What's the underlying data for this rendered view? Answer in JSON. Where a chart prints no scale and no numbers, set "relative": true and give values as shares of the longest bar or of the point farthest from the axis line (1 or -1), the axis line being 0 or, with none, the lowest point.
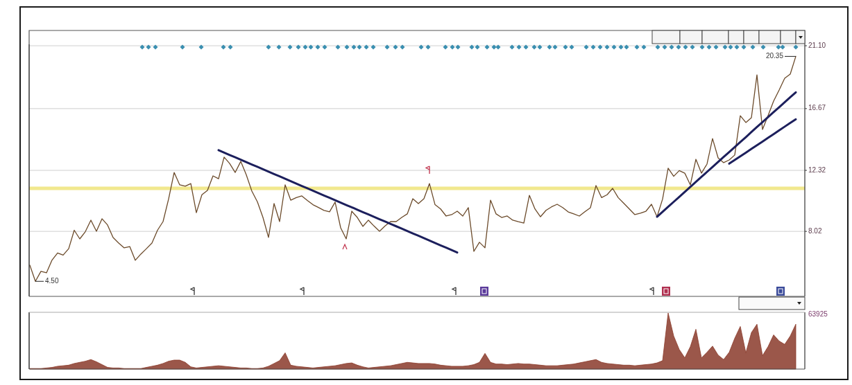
{
  "chart_data": [
    {
      "type": "line",
      "categories": [
        null,
        null,
        null,
        null,
        null,
        null,
        null,
        null,
        null,
        null,
        null,
        null,
        null,
        null,
        null,
        null,
        null,
        null,
        null,
        null,
        null,
        null,
        null,
        null,
        null,
        null,
        null,
        null,
        null,
        null,
        null,
        null,
        null,
        null,
        null,
        null,
        null,
        null,
        null,
        null,
        null,
        null,
        null,
        null,
        null,
        null,
        null,
        null,
        null,
        null,
        null,
        null,
        null,
        null,
        null,
        null,
        null,
        null,
        null,
        null,
        null,
        null,
        null,
        null,
        null,
        null,
        null,
        null,
        null,
        null,
        null,
        null,
        null,
        null,
        null,
        null,
        null,
        null,
        null,
        null,
        null,
        null,
        null,
        null,
        null,
        null,
        null,
        null,
        null,
        null,
        null,
        null,
        null,
        null,
        null,
        null,
        null,
        null,
        null,
        null,
        null,
        null,
        null,
        null,
        null,
        null,
        null,
        null,
        null,
        null,
        null,
        null,
        null,
        null,
        null,
        null,
        null,
        null,
        null,
        null,
        null,
        null,
        null,
        null,
        null,
        null,
        null,
        null,
        null,
        null,
        null,
        null,
        null,
        null,
        null,
        null,
        null,
        null,
        null
      ],
      "ylim": [
        3.44,
        21.2
      ],
      "yticks": [
        {
          "value": 21.1,
          "label": "21.10"
        },
        {
          "value": 16.67,
          "label": "16.67"
        },
        {
          "value": 12.32,
          "label": "12.32"
        },
        {
          "value": 8.02,
          "label": "8.02"
        }
      ],
      "tick_labels": "y",
      "grid": "y",
      "series": [
        {
          "color": "#6b4a2a",
          "values": [
            5.64,
            4.5,
            5.2,
            5.1,
            6.0,
            6.5,
            6.35,
            6.8,
            8.1,
            7.49,
            8.0,
            8.81,
            8.03,
            8.91,
            8.47,
            7.59,
            7.2,
            6.86,
            6.95,
            5.98,
            6.42,
            6.8,
            7.2,
            8.1,
            8.71,
            10.3,
            12.17,
            11.3,
            11.2,
            11.39,
            9.34,
            10.6,
            10.9,
            11.93,
            11.73,
            13.25,
            12.8,
            12.17,
            12.95,
            12.0,
            10.86,
            10.1,
            9.0,
            7.59,
            9.98,
            8.71,
            11.3,
            10.22,
            10.4,
            10.52,
            10.2,
            9.9,
            9.7,
            9.5,
            9.4,
            10.08,
            8.27,
            7.49,
            9.44,
            9.0,
            8.37,
            8.81,
            8.4,
            8.03,
            8.4,
            8.71,
            8.71,
            9.0,
            9.25,
            10.32,
            9.98,
            10.32,
            11.39,
            9.9,
            9.6,
            9.1,
            9.2,
            9.44,
            9.1,
            9.69,
            6.61,
            7.25,
            6.86,
            10.22,
            9.25,
            9.0,
            9.1,
            8.81,
            8.7,
            8.61,
            10.56,
            9.6,
            9.05,
            9.5,
            9.75,
            9.93,
            9.7,
            9.39,
            9.25,
            9.1,
            9.4,
            9.69,
            11.25,
            10.4,
            10.6,
            11.05,
            10.4,
            10.0,
            9.6,
            9.2,
            9.3,
            9.44,
            9.93,
            9.05,
            10.3,
            12.47,
            11.9,
            12.3,
            12.12,
            11.3,
            13.1,
            12.12,
            12.76,
            14.56,
            13.2,
            12.86,
            13.05,
            13.4,
            16.17,
            15.69,
            16.03,
            19.05,
            15.2,
            16.17,
            17.2,
            17.98,
            18.81,
            19.1,
            20.35
          ]
        },
        {
          "color": "#1c1f5c",
          "values": [
            null,
            null,
            null,
            null,
            null,
            null,
            null,
            null,
            null,
            null,
            null,
            null,
            null,
            null,
            null,
            null,
            null,
            null,
            null,
            null,
            null,
            null,
            null,
            null,
            null,
            null,
            null,
            null,
            null,
            null,
            null,
            null,
            null,
            null,
            13.74,
            13.57,
            13.4,
            13.24,
            13.07,
            12.9,
            12.73,
            12.57,
            12.4,
            12.23,
            12.06,
            11.9,
            11.73,
            11.56,
            11.39,
            11.22,
            11.06,
            10.89,
            10.72,
            10.55,
            10.39,
            10.22,
            10.05,
            9.88,
            9.72,
            9.55,
            9.38,
            9.21,
            9.05,
            8.88,
            8.71,
            8.54,
            8.38,
            8.21,
            8.04,
            7.87,
            7.71,
            7.54,
            7.37,
            7.2,
            7.03,
            6.87,
            6.7,
            6.53,
            null,
            null,
            null,
            null,
            null,
            null,
            null,
            null,
            null,
            null,
            null,
            null,
            null,
            null,
            null,
            null,
            null,
            null,
            null,
            null,
            null,
            null,
            null,
            null,
            null,
            null,
            null,
            null,
            null,
            null,
            null,
            null,
            null,
            null,
            null,
            null,
            null,
            null,
            null,
            null,
            null,
            null,
            null,
            null,
            null,
            null,
            null,
            null,
            null,
            null,
            null,
            null,
            null,
            null,
            null,
            null,
            null,
            null,
            null,
            null,
            null
          ]
        },
        {
          "color": "#1c1f5c",
          "values": [
            null,
            null,
            null,
            null,
            null,
            null,
            null,
            null,
            null,
            null,
            null,
            null,
            null,
            null,
            null,
            null,
            null,
            null,
            null,
            null,
            null,
            null,
            null,
            null,
            null,
            null,
            null,
            null,
            null,
            null,
            null,
            null,
            null,
            null,
            null,
            null,
            null,
            null,
            null,
            null,
            null,
            null,
            null,
            null,
            null,
            null,
            null,
            null,
            null,
            null,
            null,
            null,
            null,
            null,
            null,
            null,
            null,
            null,
            null,
            null,
            null,
            null,
            null,
            null,
            null,
            null,
            null,
            null,
            null,
            null,
            null,
            null,
            null,
            null,
            null,
            null,
            null,
            null,
            null,
            null,
            null,
            null,
            null,
            null,
            null,
            null,
            null,
            null,
            null,
            null,
            null,
            null,
            null,
            null,
            null,
            null,
            null,
            null,
            null,
            null,
            null,
            null,
            null,
            null,
            null,
            null,
            null,
            null,
            null,
            null,
            null,
            null,
            null,
            9.05,
            9.4,
            9.75,
            10.1,
            10.45,
            10.8,
            11.16,
            11.51,
            11.86,
            12.21,
            12.56,
            12.91,
            13.26,
            13.61,
            13.96,
            14.31,
            14.66,
            15.02,
            15.37,
            15.72,
            16.07,
            16.42,
            16.77,
            17.12,
            17.47,
            17.82
          ]
        },
        {
          "color": "#1c1f5c",
          "values": [
            null,
            null,
            null,
            null,
            null,
            null,
            null,
            null,
            null,
            null,
            null,
            null,
            null,
            null,
            null,
            null,
            null,
            null,
            null,
            null,
            null,
            null,
            null,
            null,
            null,
            null,
            null,
            null,
            null,
            null,
            null,
            null,
            null,
            null,
            null,
            null,
            null,
            null,
            null,
            null,
            null,
            null,
            null,
            null,
            null,
            null,
            null,
            null,
            null,
            null,
            null,
            null,
            null,
            null,
            null,
            null,
            null,
            null,
            null,
            null,
            null,
            null,
            null,
            null,
            null,
            null,
            null,
            null,
            null,
            null,
            null,
            null,
            null,
            null,
            null,
            null,
            null,
            null,
            null,
            null,
            null,
            null,
            null,
            null,
            null,
            null,
            null,
            null,
            null,
            null,
            null,
            null,
            null,
            null,
            null,
            null,
            null,
            null,
            null,
            null,
            null,
            null,
            null,
            null,
            null,
            null,
            null,
            null,
            null,
            null,
            null,
            null,
            null,
            null,
            null,
            null,
            null,
            null,
            null,
            null,
            null,
            null,
            null,
            null,
            null,
            null,
            12.79,
            13.05,
            13.31,
            13.57,
            13.83,
            14.09,
            14.35,
            14.61,
            14.87,
            15.14,
            15.4,
            15.66,
            15.92
          ]
        }
      ],
      "ref_lines": [
        {
          "axis": "y",
          "value": 11.05,
          "color": "#efe47a"
        }
      ],
      "annotations": [
        "20.35",
        "4.50"
      ]
    },
    {
      "type": "area",
      "categories": [
        null,
        null,
        null,
        null,
        null,
        null,
        null,
        null,
        null,
        null,
        null,
        null,
        null,
        null,
        null,
        null,
        null,
        null,
        null,
        null,
        null,
        null,
        null,
        null,
        null,
        null,
        null,
        null,
        null,
        null,
        null,
        null,
        null,
        null,
        null,
        null,
        null,
        null,
        null,
        null,
        null,
        null,
        null,
        null,
        null,
        null,
        null,
        null,
        null,
        null,
        null,
        null,
        null,
        null,
        null,
        null,
        null,
        null,
        null,
        null,
        null,
        null,
        null,
        null,
        null,
        null,
        null,
        null,
        null,
        null,
        null,
        null,
        null,
        null,
        null,
        null,
        null,
        null,
        null,
        null,
        null,
        null,
        null,
        null,
        null,
        null,
        null,
        null,
        null,
        null,
        null,
        null,
        null,
        null,
        null,
        null,
        null,
        null,
        null,
        null,
        null,
        null,
        null,
        null,
        null,
        null,
        null,
        null,
        null,
        null,
        null,
        null,
        null,
        null,
        null,
        null,
        null,
        null,
        null,
        null,
        null,
        null,
        null,
        null,
        null,
        null,
        null,
        null,
        null,
        null,
        null,
        null,
        null,
        null,
        null,
        null,
        null,
        null,
        null
      ],
      "relative": true,
      "tick_labels": false,
      "color": "#8a3a2a",
      "values": [
        0.01,
        0.01,
        0.01,
        0.02,
        0.03,
        0.05,
        0.06,
        0.07,
        0.1,
        0.12,
        0.14,
        0.17,
        0.13,
        0.08,
        0.03,
        0.02,
        0.02,
        0.01,
        0.01,
        0.01,
        0.01,
        0.03,
        0.05,
        0.07,
        0.1,
        0.14,
        0.16,
        0.16,
        0.12,
        0.04,
        0.02,
        0.03,
        0.04,
        0.05,
        0.06,
        0.05,
        0.04,
        0.03,
        0.02,
        0.02,
        0.01,
        0.01,
        0.02,
        0.05,
        0.1,
        0.15,
        0.29,
        0.07,
        0.05,
        0.04,
        0.03,
        0.02,
        0.03,
        0.04,
        0.05,
        0.06,
        0.08,
        0.1,
        0.11,
        0.07,
        0.04,
        0.02,
        0.03,
        0.04,
        0.05,
        0.06,
        0.08,
        0.1,
        0.12,
        0.11,
        0.1,
        0.1,
        0.1,
        0.09,
        0.07,
        0.06,
        0.05,
        0.05,
        0.05,
        0.06,
        0.08,
        0.12,
        0.28,
        0.12,
        0.09,
        0.09,
        0.08,
        0.09,
        0.1,
        0.09,
        0.09,
        0.08,
        0.07,
        0.06,
        0.06,
        0.06,
        0.07,
        0.08,
        0.09,
        0.11,
        0.13,
        0.15,
        0.17,
        0.12,
        0.1,
        0.09,
        0.08,
        0.07,
        0.07,
        0.06,
        0.07,
        0.08,
        0.09,
        0.11,
        0.15,
        1,
        0.59,
        0.35,
        0.2,
        0.4,
        0.71,
        0.2,
        0.3,
        0.41,
        0.25,
        0.17,
        0.3,
        0.55,
        0.76,
        0.29,
        0.65,
        0.8,
        0.24,
        0.4,
        0.61,
        0.5,
        0.44,
        0.59,
        0.8
      ],
      "annotations": [
        "63925"
      ]
    }
  ]
}
